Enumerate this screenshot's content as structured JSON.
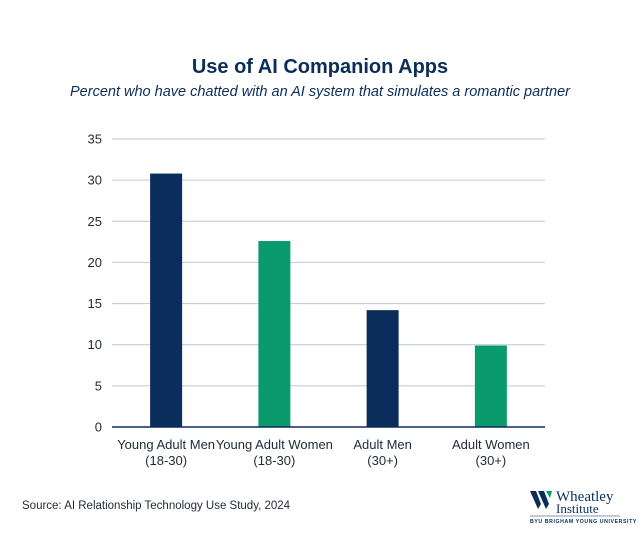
{
  "chart_data": {
    "type": "bar",
    "title": "Use of AI Companion Apps",
    "subtitle": "Percent who have chatted with an AI system that simulates a romantic partner",
    "categories": [
      [
        "Young Adult Men",
        "(18-30)"
      ],
      [
        "Young Adult Women",
        "(18-30)"
      ],
      [
        "Adult Men",
        "(30+)"
      ],
      [
        "Adult Women",
        "(30+)"
      ]
    ],
    "values": [
      30.8,
      22.6,
      14.2,
      9.9
    ],
    "bar_colors": [
      "#0b2d5b",
      "#0a9b6c",
      "#0b2d5b",
      "#0a9b6c"
    ],
    "ylim": [
      0,
      35
    ],
    "yticks": [
      0,
      5,
      10,
      15,
      20,
      25,
      30,
      35
    ],
    "grid": true,
    "xlabel": "",
    "ylabel": ""
  },
  "footer": {
    "source": "Source: AI Relationship Technology Use Study, 2024"
  },
  "logo": {
    "name_line1": "Wheatley",
    "name_line2": "Institute",
    "university_line": "BYU BRIGHAM YOUNG UNIVERSITY",
    "colors": {
      "navy": "#0b2d5b",
      "green": "#0a9b6c"
    }
  }
}
